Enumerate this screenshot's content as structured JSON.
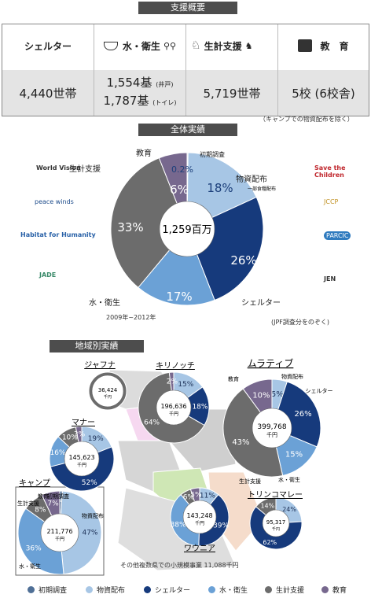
{
  "summary": {
    "title": "支援概要",
    "columns": [
      {
        "label": "シェルター",
        "icon": "house-icon",
        "value": "4,440世帯"
      },
      {
        "label": "水・衛生",
        "icon": "water-basin-icon",
        "value_line1": "1,554基",
        "unit1": "(井戸)",
        "value_line2": "1,787基",
        "unit2": "(トイレ)"
      },
      {
        "label": "生計支援",
        "icon": "livestock-icon",
        "value": "5,719世帯"
      },
      {
        "label": "教　育",
        "icon": "classroom-icon",
        "value": "5校 (6校舎)"
      }
    ],
    "note": "（キャンプでの物資配布を除く）"
  },
  "overall": {
    "title": "全体実績",
    "center_value": "1,259百万",
    "period": "2009年~2012年",
    "note": "(JPF調査分をのぞく)",
    "sublabel": "一部食糧配布",
    "logos": [
      "World Vision",
      "peace winds",
      "Habitat for Humanity",
      "JADE",
      "Save the Children",
      "JCCP",
      "PARCIC",
      "JEN"
    ]
  },
  "regional": {
    "title": "地域別実績",
    "footnote": "その他複数県での小規模事業 11,088千円",
    "unit": "千円"
  },
  "colors": {
    "initial_survey": "#4f6f96",
    "distribution": "#a7c6e5",
    "shelter": "#163a7c",
    "water": "#6ba1d6",
    "livelihood": "#6c6c6c",
    "education": "#77688e"
  },
  "legend": [
    "初期調査",
    "物資配布",
    "シェルター",
    "水・衛生",
    "生計支援",
    "教育"
  ],
  "chart_data": [
    {
      "type": "pie",
      "title": "全体実績",
      "total_label": "1,259百万",
      "categories": [
        "初期調査",
        "物資配布",
        "シェルター",
        "水・衛生",
        "生計支援",
        "教育"
      ],
      "values": [
        0.2,
        18,
        26,
        17,
        33,
        6
      ],
      "labels": [
        "0.2%",
        "18%",
        "26%",
        "17%",
        "33%",
        "6%"
      ]
    },
    {
      "type": "pie",
      "title": "ジャフナ",
      "total": "36,424",
      "categories": [
        "初期調査",
        "物資配布",
        "シェルター",
        "水・衛生",
        "生計支援",
        "教育"
      ],
      "values": [
        0,
        0,
        0,
        0,
        100,
        0
      ],
      "labels": []
    },
    {
      "type": "pie",
      "title": "キリノッチ",
      "total": "196,636",
      "categories": [
        "初期調査",
        "物資配布",
        "シェルター",
        "水・衛生",
        "生計支援",
        "教育"
      ],
      "values": [
        0,
        15,
        18,
        0,
        64,
        2
      ],
      "labels": [
        "",
        "15%",
        "18%",
        "",
        "64%",
        "2%"
      ]
    },
    {
      "type": "pie",
      "title": "ムラティブ",
      "total": "399,768",
      "categories": [
        "初期調査",
        "物資配布",
        "シェルター",
        "水・衛生",
        "生計支援",
        "教育"
      ],
      "values": [
        0,
        5,
        26,
        15,
        43,
        10
      ],
      "labels": [
        "",
        "5%",
        "26%",
        "15%",
        "43%",
        "10%"
      ]
    },
    {
      "type": "pie",
      "title": "マナー",
      "total": "145,623",
      "categories": [
        "初期調査",
        "物資配布",
        "シェルター",
        "水・衛生",
        "生計支援",
        "教育"
      ],
      "values": [
        0,
        19,
        52,
        16,
        10,
        3
      ],
      "labels": [
        "",
        "19%",
        "52%",
        "16%",
        "10%",
        "3%"
      ]
    },
    {
      "type": "pie",
      "title": "キャンプ",
      "total": "211,776",
      "categories": [
        "初期調査",
        "物資配布",
        "シェルター",
        "水・衛生",
        "生計支援",
        "教育"
      ],
      "values": [
        1,
        47,
        0,
        36,
        8,
        7
      ],
      "labels": [
        "1%",
        "47%",
        "",
        "36%",
        "8%",
        "7%"
      ]
    },
    {
      "type": "pie",
      "title": "ワウニア",
      "total": "143,248",
      "categories": [
        "初期調査",
        "物資配布",
        "シェルター",
        "水・衛生",
        "生計支援",
        "教育"
      ],
      "values": [
        0,
        11,
        39,
        38,
        6,
        5
      ],
      "labels": [
        "",
        "11%",
        "39%",
        "38%",
        "6%",
        "5%"
      ]
    },
    {
      "type": "pie",
      "title": "トリンコマレー",
      "total": "95,317",
      "categories": [
        "初期調査",
        "物資配布",
        "シェルター",
        "水・衛生",
        "生計支援",
        "教育"
      ],
      "values": [
        0,
        24,
        62,
        0,
        14,
        0
      ],
      "labels": [
        "",
        "24%",
        "62%",
        "",
        "14%",
        ""
      ]
    }
  ]
}
